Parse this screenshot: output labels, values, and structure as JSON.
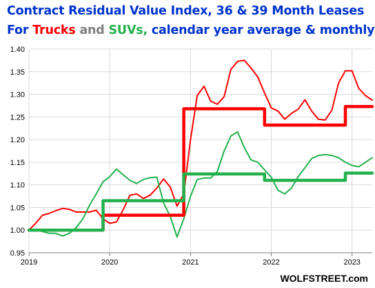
{
  "title": {
    "line1": "Contract Residual Value Index, 36 & 39 Month Leases",
    "line2_for": "For ",
    "line2_trucks": "Trucks",
    "line2_and": " and ",
    "line2_suvs": "SUVs,",
    "line2_rest": " calendar year average & monthly"
  },
  "watermark": "WOLFSTREET.com",
  "colors": {
    "trucks": "#ff0000",
    "suvs": "#22b14c",
    "title": "#0033cc",
    "grid": "#d9d9d9"
  },
  "chart_data": {
    "type": "line",
    "grid": true,
    "legend": "none",
    "xlim": [
      2019,
      2023.25
    ],
    "ylim": [
      0.95,
      1.4
    ],
    "x_ticks": [
      "2019",
      "2020",
      "2021",
      "2022",
      "2023"
    ],
    "y_ticks": [
      "0.95",
      "1.00",
      "1.05",
      "1.10",
      "1.15",
      "1.20",
      "1.25",
      "1.30",
      "1.35",
      "1.40"
    ],
    "series": [
      {
        "name": "Trucks",
        "kind": "monthly",
        "color": "#ff0000",
        "x": [
          2019.0,
          2019.083,
          2019.167,
          2019.25,
          2019.333,
          2019.417,
          2019.5,
          2019.583,
          2019.667,
          2019.75,
          2019.833,
          2019.917,
          2020.0,
          2020.083,
          2020.167,
          2020.25,
          2020.333,
          2020.417,
          2020.5,
          2020.583,
          2020.667,
          2020.75,
          2020.833,
          2020.917,
          2021.0,
          2021.083,
          2021.167,
          2021.25,
          2021.333,
          2021.417,
          2021.5,
          2021.583,
          2021.667,
          2021.75,
          2021.833,
          2021.917,
          2022.0,
          2022.083,
          2022.167,
          2022.25,
          2022.333,
          2022.417,
          2022.5,
          2022.583,
          2022.667,
          2022.75,
          2022.833,
          2022.917,
          2023.0,
          2023.083,
          2023.167,
          2023.25
        ],
        "values": [
          1.0,
          1.015,
          1.033,
          1.037,
          1.043,
          1.048,
          1.046,
          1.04,
          1.04,
          1.04,
          1.044,
          1.025,
          1.015,
          1.018,
          1.045,
          1.077,
          1.08,
          1.07,
          1.077,
          1.093,
          1.113,
          1.095,
          1.053,
          1.08,
          1.2,
          1.297,
          1.318,
          1.285,
          1.278,
          1.295,
          1.355,
          1.373,
          1.375,
          1.358,
          1.338,
          1.303,
          1.27,
          1.263,
          1.245,
          1.258,
          1.267,
          1.288,
          1.263,
          1.245,
          1.243,
          1.265,
          1.325,
          1.352,
          1.352,
          1.313,
          1.297,
          1.287
        ]
      },
      {
        "name": "SUVs",
        "kind": "monthly",
        "color": "#22b14c",
        "x": [
          2019.0,
          2019.083,
          2019.167,
          2019.25,
          2019.333,
          2019.417,
          2019.5,
          2019.583,
          2019.667,
          2019.75,
          2019.833,
          2019.917,
          2020.0,
          2020.083,
          2020.167,
          2020.25,
          2020.333,
          2020.417,
          2020.5,
          2020.583,
          2020.667,
          2020.75,
          2020.833,
          2020.917,
          2021.0,
          2021.083,
          2021.167,
          2021.25,
          2021.333,
          2021.417,
          2021.5,
          2021.583,
          2021.667,
          2021.75,
          2021.833,
          2021.917,
          2022.0,
          2022.083,
          2022.167,
          2022.25,
          2022.333,
          2022.417,
          2022.5,
          2022.583,
          2022.667,
          2022.75,
          2022.833,
          2022.917,
          2023.0,
          2023.083,
          2023.167,
          2023.25
        ],
        "values": [
          1.0,
          1.0,
          0.997,
          0.993,
          0.993,
          0.987,
          0.993,
          1.005,
          1.025,
          1.055,
          1.08,
          1.107,
          1.118,
          1.135,
          1.122,
          1.11,
          1.103,
          1.112,
          1.116,
          1.117,
          1.06,
          1.03,
          0.985,
          1.025,
          1.075,
          1.112,
          1.115,
          1.115,
          1.13,
          1.175,
          1.208,
          1.217,
          1.182,
          1.155,
          1.15,
          1.133,
          1.117,
          1.088,
          1.08,
          1.093,
          1.118,
          1.138,
          1.158,
          1.165,
          1.167,
          1.165,
          1.16,
          1.15,
          1.143,
          1.14,
          1.15,
          1.16
        ]
      },
      {
        "name": "Trucks",
        "kind": "calendar year average",
        "color": "#ff0000",
        "x": [
          2019.0,
          2019.917,
          2019.917,
          2020.917,
          2020.917,
          2021.917,
          2021.917,
          2022.917,
          2022.917,
          2023.25
        ],
        "values": [
          1.0,
          1.0,
          1.033,
          1.033,
          1.268,
          1.268,
          1.232,
          1.232,
          1.273,
          1.273
        ]
      },
      {
        "name": "SUVs",
        "kind": "calendar year average",
        "color": "#22b14c",
        "x": [
          2019.0,
          2019.917,
          2019.917,
          2020.917,
          2020.917,
          2021.917,
          2021.917,
          2022.917,
          2022.917,
          2023.25
        ],
        "values": [
          1.0,
          1.0,
          1.065,
          1.065,
          1.124,
          1.124,
          1.11,
          1.11,
          1.126,
          1.126
        ]
      }
    ]
  }
}
